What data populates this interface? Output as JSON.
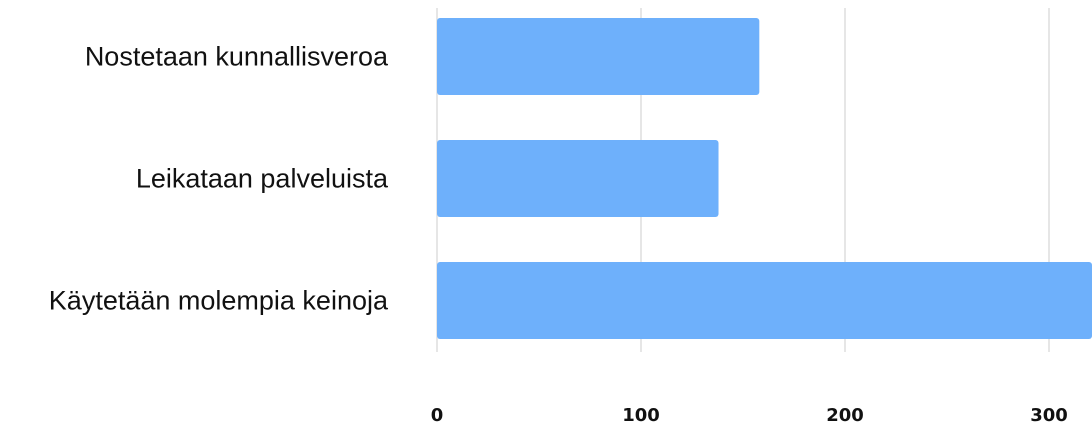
{
  "chart_data": {
    "type": "bar",
    "orientation": "horizontal",
    "categories": [
      "Nostetaan kunnallisveroa",
      "Leikataan palveluista",
      "Käytetään molempia keinoja"
    ],
    "values": [
      158,
      138,
      335
    ],
    "title": "",
    "xlabel": "",
    "ylabel": "",
    "xlim": [
      0,
      320
    ],
    "ticks": [
      "0",
      "100",
      "200",
      "300"
    ],
    "grid": true,
    "bar_color": "#6eb0fb",
    "grid_color": "#e6e6e6"
  }
}
